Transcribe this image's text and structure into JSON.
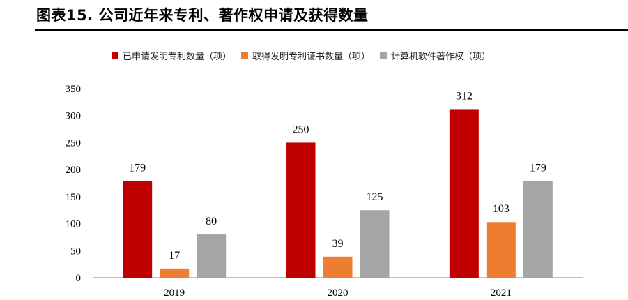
{
  "figure": {
    "title": "图表15. 公司近年来专利、著作权申请及获得数量"
  },
  "chart_data": {
    "type": "bar",
    "title": "图表15. 公司近年来专利、著作权申请及获得数量",
    "categories": [
      "2019",
      "2020",
      "2021"
    ],
    "series": [
      {
        "name": "已申请发明专利数量（项）",
        "values": [
          179,
          250,
          312
        ],
        "color": "#c00000"
      },
      {
        "name": "取得发明专利证书数量（项）",
        "values": [
          17,
          39,
          103
        ],
        "color": "#ed7d31"
      },
      {
        "name": "计算机软件著作权（项）",
        "values": [
          80,
          125,
          179
        ],
        "color": "#a5a5a5"
      }
    ],
    "ylim": [
      0,
      350
    ],
    "yticks": [
      0,
      50,
      100,
      150,
      200,
      250,
      300,
      350
    ],
    "xlabel": "",
    "ylabel": "",
    "grid": false,
    "legend_position": "top",
    "data_labels": true
  }
}
